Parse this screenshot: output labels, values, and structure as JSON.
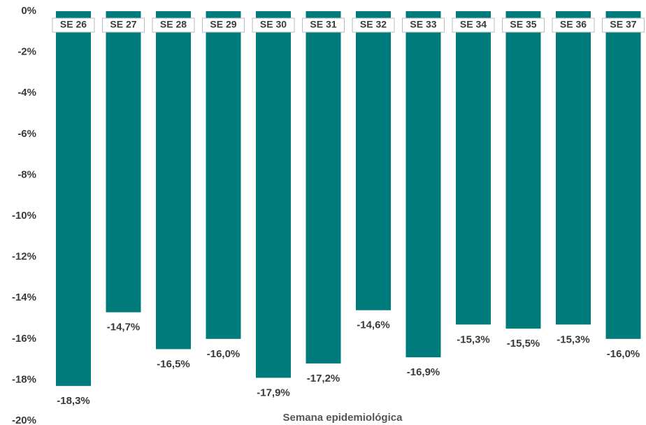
{
  "chart_data": {
    "type": "bar",
    "x_label": "Semana epidemiológica",
    "categories": [
      "SE 26",
      "SE 27",
      "SE 28",
      "SE 29",
      "SE 30",
      "SE 31",
      "SE 32",
      "SE 33",
      "SE 34",
      "SE 35",
      "SE 36",
      "SE 37"
    ],
    "values": [
      -18.3,
      -14.7,
      -16.5,
      -16.0,
      -17.9,
      -17.2,
      -14.6,
      -16.9,
      -15.3,
      -15.5,
      -15.3,
      -16.0
    ],
    "value_labels": [
      "-18,3%",
      "-14,7%",
      "-16,5%",
      "-16,0%",
      "-17,9%",
      "-17,2%",
      "-14,6%",
      "-16,9%",
      "-15,3%",
      "-15,5%",
      "-15,3%",
      "-16,0%"
    ],
    "color": "#007b7b",
    "ylim": [
      -20,
      0
    ],
    "yticks": [
      {
        "value": 0,
        "label": "0%"
      },
      {
        "value": -2,
        "label": "-2%"
      },
      {
        "value": -4,
        "label": "-4%"
      },
      {
        "value": -6,
        "label": "-6%"
      },
      {
        "value": -8,
        "label": "-8%"
      },
      {
        "value": -10,
        "label": "-10%"
      },
      {
        "value": -12,
        "label": "-12%"
      },
      {
        "value": -14,
        "label": "-14%"
      },
      {
        "value": -16,
        "label": "-16%"
      },
      {
        "value": -18,
        "label": "-18%"
      },
      {
        "value": -20,
        "label": "-20%"
      }
    ]
  }
}
